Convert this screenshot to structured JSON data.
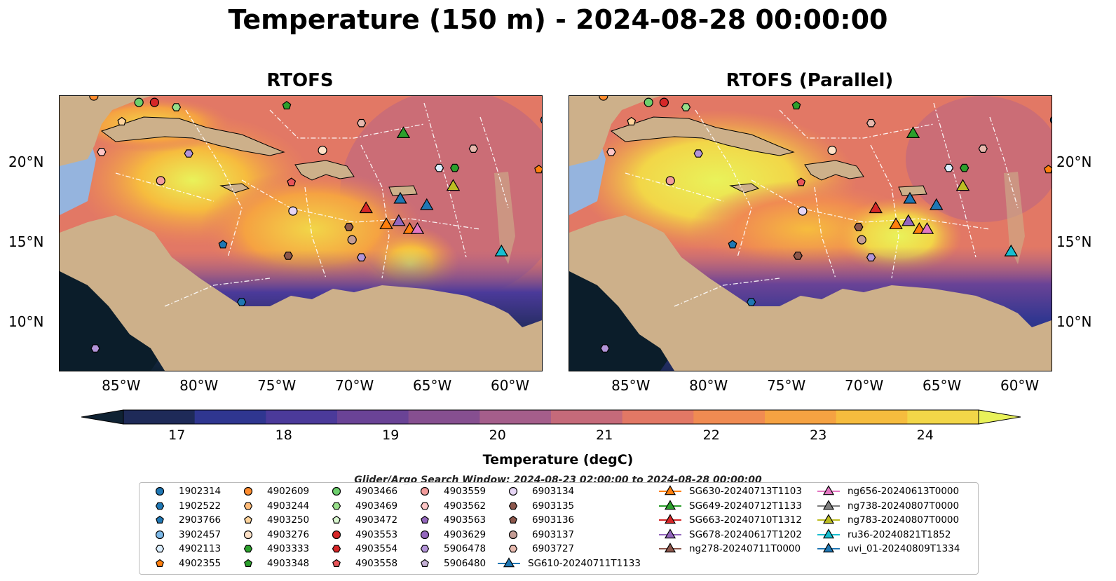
{
  "title": "Temperature (150 m) - 2024-08-28 00:00:00",
  "panels": [
    {
      "title": "RTOFS"
    },
    {
      "title": "RTOFS (Parallel)"
    }
  ],
  "axes": {
    "x_ticks": [
      "85°W",
      "80°W",
      "75°W",
      "70°W",
      "65°W",
      "60°W"
    ],
    "y_ticks": [
      "20°N",
      "15°N",
      "10°N"
    ]
  },
  "colorbar": {
    "label": "Temperature (degC)",
    "ticks": [
      "17",
      "18",
      "19",
      "20",
      "21",
      "22",
      "23",
      "24"
    ],
    "range": [
      16.5,
      24.5
    ],
    "extend": "both",
    "colormap": "thermal",
    "colors": [
      "#0f2233",
      "#1e2a58",
      "#2f3690",
      "#4b3a9a",
      "#6a4396",
      "#864f90",
      "#a55e8b",
      "#c56a7a",
      "#e27865",
      "#f08b52",
      "#f5a242",
      "#f6bc3e",
      "#f2d648",
      "#e9f25a"
    ]
  },
  "search_window": "Glider/Argo Search Window: 2024-08-23 02:00:00 to 2024-08-28 00:00:00",
  "map_colors": {
    "land": "#cdb08a",
    "shallow": "#95b4de",
    "deep": "#0b1d2a",
    "grid": "#ffffff"
  },
  "legend": {
    "argo": [
      {
        "label": "1902314",
        "marker": "circle",
        "color": "#1f77b4"
      },
      {
        "label": "1902522",
        "marker": "hexagon",
        "color": "#1f77b4"
      },
      {
        "label": "2903766",
        "marker": "pentagon",
        "color": "#1f77b4"
      },
      {
        "label": "3902457",
        "marker": "circle",
        "color": "#7db9e8"
      },
      {
        "label": "4902113",
        "marker": "hexagon",
        "color": "#dbeeff"
      },
      {
        "label": "4902355",
        "marker": "pentagon",
        "color": "#ff7f0e"
      },
      {
        "label": "4902609",
        "marker": "circle",
        "color": "#ff8c2e"
      },
      {
        "label": "4903244",
        "marker": "hexagon",
        "color": "#ffbb78"
      },
      {
        "label": "4903250",
        "marker": "pentagon",
        "color": "#ffd39b"
      },
      {
        "label": "4903276",
        "marker": "circle",
        "color": "#ffe2c8"
      },
      {
        "label": "4903333",
        "marker": "hexagon",
        "color": "#2ca02c"
      },
      {
        "label": "4903348",
        "marker": "pentagon",
        "color": "#2ca02c"
      },
      {
        "label": "4903466",
        "marker": "circle",
        "color": "#6ccf6c"
      },
      {
        "label": "4903469",
        "marker": "hexagon",
        "color": "#98df8a"
      },
      {
        "label": "4903472",
        "marker": "pentagon",
        "color": "#d9f7cf"
      },
      {
        "label": "4903553",
        "marker": "circle",
        "color": "#d62728"
      },
      {
        "label": "4903554",
        "marker": "hexagon",
        "color": "#d62728"
      },
      {
        "label": "4903558",
        "marker": "pentagon",
        "color": "#e8555a"
      },
      {
        "label": "4903559",
        "marker": "circle",
        "color": "#f29b9b"
      },
      {
        "label": "4903562",
        "marker": "hexagon",
        "color": "#ffc6c6"
      },
      {
        "label": "4903563",
        "marker": "pentagon",
        "color": "#9467bd"
      },
      {
        "label": "4903629",
        "marker": "circle",
        "color": "#9467bd"
      },
      {
        "label": "5906478",
        "marker": "hexagon",
        "color": "#b394d8"
      },
      {
        "label": "5906480",
        "marker": "pentagon",
        "color": "#c5b0d5"
      },
      {
        "label": "6903134",
        "marker": "circle",
        "color": "#e6d5f5"
      },
      {
        "label": "6903135",
        "marker": "hexagon",
        "color": "#8c564b"
      },
      {
        "label": "6903136",
        "marker": "pentagon",
        "color": "#8c564b"
      },
      {
        "label": "6903137",
        "marker": "circle",
        "color": "#c49c94"
      },
      {
        "label": "6903727",
        "marker": "hexagon",
        "color": "#e7b9ae"
      }
    ],
    "gliders": [
      {
        "label": "SG610-20240711T1133",
        "color": "#1f77b4"
      },
      {
        "label": "SG630-20240713T1103",
        "color": "#ff7f0e"
      },
      {
        "label": "SG649-20240712T1133",
        "color": "#2ca02c"
      },
      {
        "label": "SG663-20240710T1312",
        "color": "#d62728"
      },
      {
        "label": "SG678-20240617T1202",
        "color": "#9467bd"
      },
      {
        "label": "ng278-20240711T0000",
        "color": "#8c564b"
      },
      {
        "label": "ng656-20240613T0000",
        "color": "#e377c2"
      },
      {
        "label": "ng738-20240807T0000",
        "color": "#7f7f7f"
      },
      {
        "label": "ng783-20240807T0000",
        "color": "#bcbd22"
      },
      {
        "label": "ru36-20240821T1852",
        "color": "#17becf"
      },
      {
        "label": "uvi_01-20240809T1334",
        "color": "#1f77b4"
      }
    ]
  },
  "map_markers": [
    {
      "label": "4902609",
      "lon": -86.8,
      "lat": 24.2
    },
    {
      "label": "4903466",
      "lon": -83.9,
      "lat": 23.8
    },
    {
      "label": "4903553",
      "lon": -82.9,
      "lat": 23.8
    },
    {
      "label": "4903469",
      "lon": -81.5,
      "lat": 23.5
    },
    {
      "label": "4903250",
      "lon": -85.0,
      "lat": 22.6
    },
    {
      "label": "4903348",
      "lon": -74.4,
      "lat": 23.6
    },
    {
      "label": "6903727",
      "lon": -69.6,
      "lat": 22.5
    },
    {
      "label": "1902314",
      "lon": -57.8,
      "lat": 22.7
    },
    {
      "label": "4903562",
      "lon": -86.3,
      "lat": 20.7
    },
    {
      "label": "5906478",
      "lon": -80.7,
      "lat": 20.6
    },
    {
      "label": "4903276",
      "lon": -72.1,
      "lat": 20.8
    },
    {
      "label": "6903727",
      "lon": -62.4,
      "lat": 20.9
    },
    {
      "label": "4902113",
      "lon": -64.6,
      "lat": 19.7
    },
    {
      "label": "4903333",
      "lon": -63.6,
      "lat": 19.7
    },
    {
      "label": "4902355",
      "lon": -58.2,
      "lat": 19.6
    },
    {
      "label": "4903559",
      "lon": -82.5,
      "lat": 18.9
    },
    {
      "label": "4903558",
      "lon": -74.1,
      "lat": 18.8
    },
    {
      "label": "6903134",
      "lon": -74.0,
      "lat": 17.0
    },
    {
      "label": "6903135",
      "lon": -70.4,
      "lat": 16.0
    },
    {
      "label": "6903137",
      "lon": -70.2,
      "lat": 15.2
    },
    {
      "label": "2903766",
      "lon": -78.5,
      "lat": 14.9
    },
    {
      "label": "6903135",
      "lon": -74.3,
      "lat": 14.2
    },
    {
      "label": "5906478",
      "lon": -69.6,
      "lat": 14.1
    },
    {
      "label": "1902522",
      "lon": -77.3,
      "lat": 11.3
    },
    {
      "label": "5906478",
      "lon": -86.7,
      "lat": 8.4
    }
  ],
  "glider_markers": [
    {
      "label": "SG649-20240712T1133",
      "lon": -66.9,
      "lat": 21.9
    },
    {
      "label": "ng783-20240807T0000",
      "lon": -63.7,
      "lat": 18.6
    },
    {
      "label": "uvi_01-20240809T1334",
      "lon": -67.1,
      "lat": 17.8
    },
    {
      "label": "uvi_01-20240809T1334",
      "lon": -65.4,
      "lat": 17.4
    },
    {
      "label": "SG663-20240710T1312",
      "lon": -69.3,
      "lat": 17.2
    },
    {
      "label": "SG630-20240713T1103",
      "lon": -68.0,
      "lat": 16.2
    },
    {
      "label": "SG678-20240617T1202",
      "lon": -67.2,
      "lat": 16.4
    },
    {
      "label": "SG630-20240713T1103",
      "lon": -66.5,
      "lat": 15.9
    },
    {
      "label": "ng656-20240613T0000",
      "lon": -66.0,
      "lat": 15.9
    },
    {
      "label": "ru36-20240821T1852",
      "lon": -60.6,
      "lat": 14.5
    }
  ]
}
